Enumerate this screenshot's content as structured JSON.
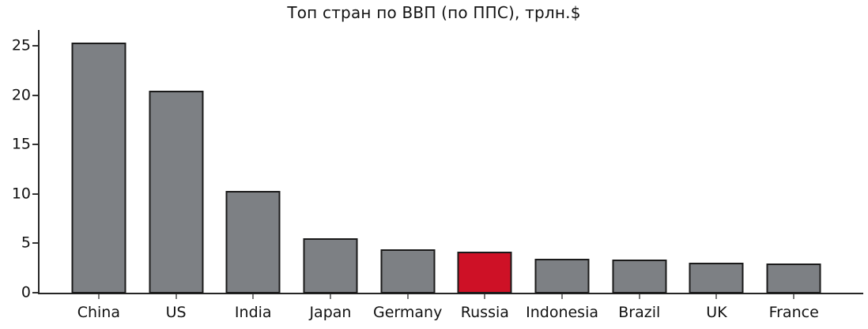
{
  "chart_data": {
    "type": "bar",
    "title": "Топ стран по ВВП (по ППС), трлн.$",
    "categories": [
      "China",
      "US",
      "India",
      "Japan",
      "Germany",
      "Russia",
      "Indonesia",
      "Brazil",
      "UK",
      "France"
    ],
    "values": [
      25.4,
      20.5,
      10.4,
      5.6,
      4.5,
      4.2,
      3.5,
      3.4,
      3.1,
      3.0
    ],
    "highlight_category": "Russia",
    "yticks": [
      0,
      5,
      10,
      15,
      20,
      25
    ],
    "ylim": [
      0,
      26.6
    ],
    "xlabel": "",
    "ylabel": "",
    "grid": false,
    "legend": false,
    "colors": {
      "bar_fill": "#7d8084",
      "highlight_fill": "#ce1126",
      "bar_edge": "#1a1a1a",
      "axis": "#262626",
      "tick": "#777777",
      "text": "#111111",
      "background": "#ffffff"
    }
  }
}
